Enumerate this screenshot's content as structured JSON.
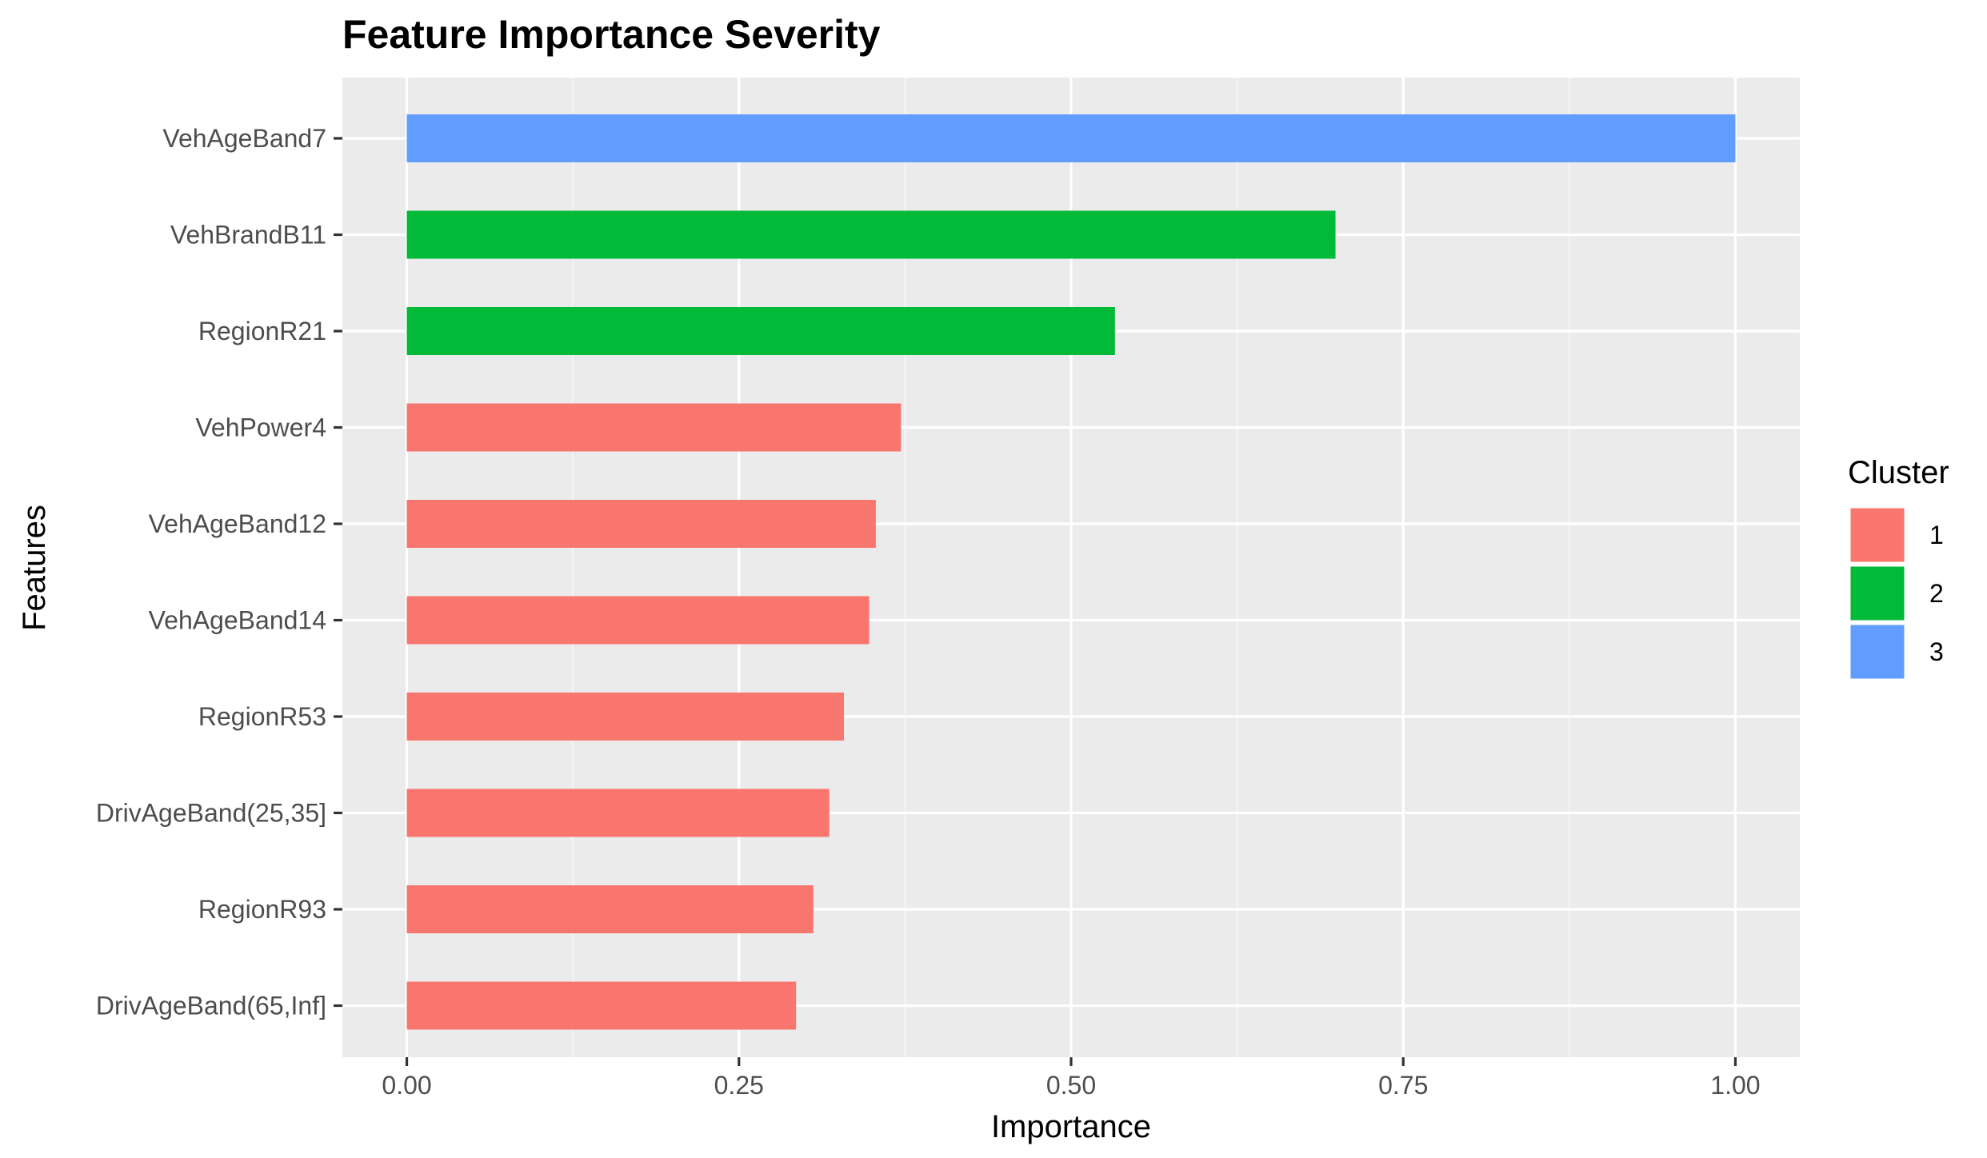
{
  "chart_data": {
    "type": "bar",
    "orientation": "horizontal",
    "title": "Feature Importance Severity",
    "xlabel": "Importance",
    "ylabel": "Features",
    "xlim": [
      -0.0485,
      1.0485
    ],
    "xticks": [
      0.0,
      0.25,
      0.5,
      0.75,
      1.0
    ],
    "xtick_labels": [
      "0.00",
      "0.25",
      "0.50",
      "0.75",
      "1.00"
    ],
    "grid": true,
    "legend": {
      "title": "Cluster",
      "placement": "right",
      "entries": [
        {
          "label": "1",
          "color": "#F8766D"
        },
        {
          "label": "2",
          "color": "#00BA38"
        },
        {
          "label": "3",
          "color": "#619CFF"
        }
      ]
    },
    "bars": [
      {
        "feature": "VehAgeBand7",
        "value": 1.0,
        "cluster": "3"
      },
      {
        "feature": "VehBrandB11",
        "value": 0.699,
        "cluster": "2"
      },
      {
        "feature": "RegionR21",
        "value": 0.533,
        "cluster": "2"
      },
      {
        "feature": "VehPower4",
        "value": 0.372,
        "cluster": "1"
      },
      {
        "feature": "VehAgeBand12",
        "value": 0.353,
        "cluster": "1"
      },
      {
        "feature": "VehAgeBand14",
        "value": 0.348,
        "cluster": "1"
      },
      {
        "feature": "RegionR53",
        "value": 0.329,
        "cluster": "1"
      },
      {
        "feature": "DrivAgeBand(25,35]",
        "value": 0.318,
        "cluster": "1"
      },
      {
        "feature": "RegionR93",
        "value": 0.306,
        "cluster": "1"
      },
      {
        "feature": "DrivAgeBand(65,Inf]",
        "value": 0.293,
        "cluster": "1"
      }
    ]
  },
  "colors": {
    "panel_background": "#EBEBEB",
    "grid_major": "#FFFFFF",
    "grid_minor": "#F7F7F7",
    "tick_text": "#4D4D4D",
    "tick_mark": "#333333"
  }
}
